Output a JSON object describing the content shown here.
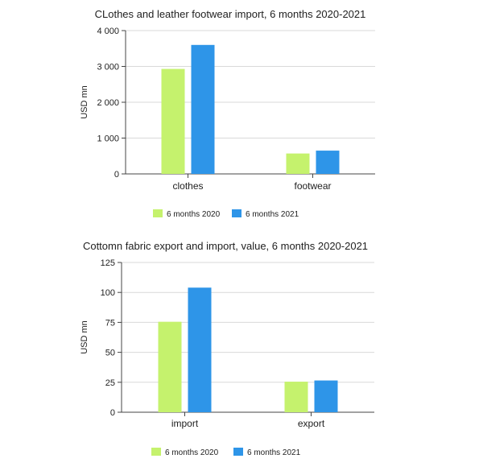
{
  "chart_data": [
    {
      "type": "bar",
      "title": "CLothes and leather footwear import, 6 months 2020-2021",
      "xlabel": "",
      "ylabel": "USD mn",
      "categories": [
        "clothes",
        "footwear"
      ],
      "series": [
        {
          "name": "6 months 2020",
          "color": "#c5f26d",
          "values": [
            2930,
            570
          ]
        },
        {
          "name": "6 months 2021",
          "color": "#2e95e8",
          "values": [
            3600,
            650
          ]
        }
      ],
      "ylim": [
        0,
        4000
      ],
      "yticks": [
        0,
        1000,
        2000,
        3000,
        4000
      ],
      "ytick_labels": [
        "0",
        "1 000",
        "2 000",
        "3 000",
        "4 000"
      ],
      "grid": true,
      "legend": "bottom"
    },
    {
      "type": "bar",
      "title": "Cottomn fabric export and import, value, 6 months 2020-2021",
      "xlabel": "",
      "ylabel": "USD mn",
      "categories": [
        "import",
        "export"
      ],
      "series": [
        {
          "name": "6 months 2020",
          "color": "#c5f26d",
          "values": [
            75.5,
            25.5
          ]
        },
        {
          "name": "6 months 2021",
          "color": "#2e95e8",
          "values": [
            104,
            26.5
          ]
        }
      ],
      "ylim": [
        0,
        125
      ],
      "yticks": [
        0,
        25,
        50,
        75,
        100,
        125
      ],
      "ytick_labels": [
        "0",
        "25",
        "50",
        "75",
        "100",
        "125"
      ],
      "grid": true,
      "legend": "bottom"
    }
  ]
}
